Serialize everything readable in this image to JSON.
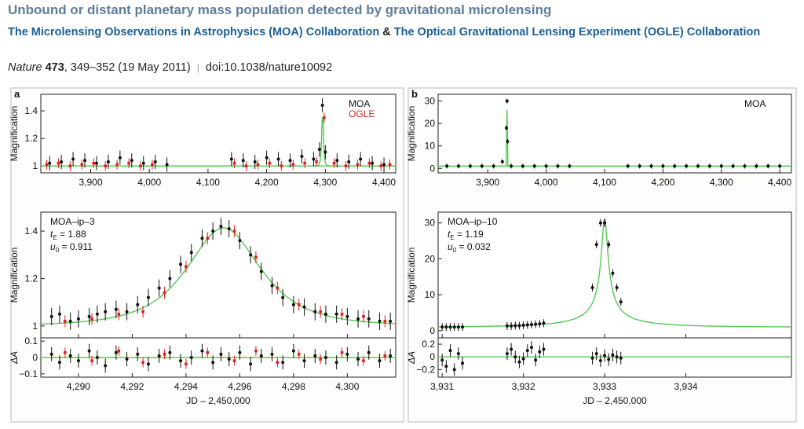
{
  "article": {
    "title": "Unbound or distant planetary mass population detected by gravitational microlensing",
    "author1": "The Microlensing Observations in Astrophysics (MOA) Collaboration",
    "amp": " & ",
    "author2": "The Optical Gravitational Lensing Experiment (OGLE) Collaboration",
    "journal": "Nature",
    "volume": "473",
    "pages": ", 349–352 (19 May 2011)",
    "separator": "|",
    "doi": "doi:10.1038/nature10092"
  },
  "colors": {
    "green": "#55c855",
    "red": "#e02020",
    "black": "#111111",
    "link": "#1a5f95",
    "title": "#5e7d9a"
  },
  "chart_data": [
    {
      "id": "a-top",
      "panel_letter": "a",
      "type": "scatter",
      "ylabel": "Magnification",
      "xlim": [
        3815,
        4420
      ],
      "ylim": [
        0.95,
        1.52
      ],
      "xticks": [
        3900,
        4000,
        4100,
        4200,
        4300,
        4400
      ],
      "xtick_labels": [
        "3,900",
        "4,000",
        "4,100",
        "4,200",
        "4,300",
        "4,400"
      ],
      "yticks": [
        1,
        1.2,
        1.4
      ],
      "ytick_labels": [
        "1",
        "1.2",
        "1.4"
      ],
      "legend": [
        "MOA",
        "OGLE"
      ],
      "legend_placement": "top-right",
      "series": [
        {
          "name": "MOA",
          "role": "data",
          "style": "black-errorbar",
          "x": [
            3830,
            3850,
            3870,
            3890,
            3910,
            3930,
            3950,
            3970,
            3990,
            4010,
            4030,
            4140,
            4160,
            4180,
            4200,
            4220,
            4240,
            4260,
            4280,
            4290,
            4295,
            4300,
            4320,
            4340,
            4360,
            4380,
            4400
          ],
          "y": [
            1.02,
            1.03,
            1.05,
            1.04,
            1.02,
            1.03,
            1.06,
            1.04,
            1.02,
            1.03,
            1.01,
            1.05,
            1.04,
            1.03,
            1.06,
            1.05,
            1.04,
            1.07,
            1.05,
            1.12,
            1.44,
            1.1,
            1.04,
            1.03,
            1.05,
            1.02,
            1.01
          ]
        },
        {
          "name": "OGLE",
          "role": "data",
          "style": "red-points",
          "x": [
            3825,
            3845,
            3865,
            3885,
            3905,
            3925,
            3945,
            3965,
            3985,
            4005,
            4145,
            4165,
            4185,
            4205,
            4225,
            4245,
            4265,
            4285,
            4298,
            4315,
            4335,
            4355,
            4375,
            4395,
            4410
          ],
          "y": [
            1.01,
            1.02,
            1.0,
            1.01,
            1.02,
            1.0,
            1.01,
            1.02,
            1.0,
            1.01,
            1.02,
            1.0,
            1.01,
            1.02,
            1.0,
            1.01,
            1.02,
            1.03,
            1.35,
            1.02,
            1.0,
            1.01,
            1.02,
            1.0,
            1.01
          ]
        },
        {
          "name": "model",
          "role": "model",
          "peak": {
            "t0": 4295.3,
            "tE": 1.88,
            "u0": 0.911
          }
        }
      ]
    },
    {
      "id": "b-top",
      "panel_letter": "b",
      "type": "scatter",
      "ylabel": "Magnification",
      "xlim": [
        3815,
        4420
      ],
      "ylim": [
        -2,
        33
      ],
      "xticks": [
        3900,
        4000,
        4100,
        4200,
        4300,
        4400
      ],
      "xtick_labels": [
        "3,900",
        "4,000",
        "4,100",
        "4,200",
        "4,300",
        "4,400"
      ],
      "yticks": [
        0,
        10,
        20,
        30
      ],
      "ytick_labels": [
        "0",
        "10",
        "20",
        "30"
      ],
      "legend": [
        "MOA"
      ],
      "legend_placement": "top-right",
      "series": [
        {
          "name": "MOA",
          "role": "data",
          "style": "black-errorbar",
          "x": [
            3830,
            3850,
            3870,
            3890,
            3910,
            3925,
            3932,
            3933,
            3934,
            3940,
            3960,
            3980,
            4000,
            4020,
            4040,
            4140,
            4160,
            4180,
            4200,
            4220,
            4240,
            4260,
            4280,
            4300,
            4320,
            4340,
            4360,
            4380,
            4400
          ],
          "y": [
            1,
            1,
            1,
            1,
            1,
            3,
            18,
            30,
            12,
            1,
            1,
            1,
            1,
            1,
            1,
            1,
            1,
            1,
            1,
            1,
            1,
            1,
            1,
            1,
            1,
            1,
            1,
            1,
            1
          ]
        },
        {
          "name": "model",
          "role": "model",
          "peak": {
            "t0": 3933.0,
            "tE": 1.19,
            "u0": 0.032
          }
        }
      ]
    },
    {
      "id": "a-bottom",
      "type": "scatter",
      "ylabel": "Magnification",
      "xlabel": "JD – 2,450,000",
      "xlim": [
        4288.6,
        4301.8
      ],
      "ylim": [
        0.95,
        1.48
      ],
      "xticks": [
        4290,
        4292,
        4294,
        4296,
        4298,
        4300
      ],
      "xtick_labels": [
        "4,290",
        "4,292",
        "4,294",
        "4,296",
        "4,298",
        "4,300"
      ],
      "yticks": [
        1,
        1.2,
        1.4
      ],
      "ytick_labels": [
        "1",
        "1.2",
        "1.4"
      ],
      "residual_ylabel": "ΔA",
      "residual_ylim": [
        -0.12,
        0.12
      ],
      "residual_yticks": [
        -0.1,
        0,
        0.1
      ],
      "residual_ytick_labels": [
        "−0.1",
        "0",
        "0.1"
      ],
      "annotation": {
        "name": "MOA–ip–3",
        "tE_label": "t",
        "tE_sub": "E",
        "tE_val": " = 1.88",
        "u0_label": "u",
        "u0_sub": "0",
        "u0_val": " = 0.911"
      },
      "model": {
        "t0": 4295.4,
        "tE": 1.88,
        "u0": 0.911
      },
      "series": [
        {
          "name": "MOA",
          "role": "data",
          "style": "black-errorbar",
          "x": [
            4289.0,
            4289.3,
            4289.7,
            4290.0,
            4290.4,
            4290.7,
            4291.0,
            4291.4,
            4291.8,
            4292.2,
            4292.6,
            4293.0,
            4293.4,
            4293.8,
            4294.2,
            4294.6,
            4295.0,
            4295.3,
            4295.6,
            4296.0,
            4296.4,
            4296.8,
            4297.2,
            4297.6,
            4298.0,
            4298.4,
            4298.8,
            4299.2,
            4299.6,
            4300.0,
            4300.4,
            4300.8,
            4301.2,
            4301.6
          ],
          "y": [
            1.04,
            1.05,
            1.02,
            1.03,
            1.04,
            1.05,
            1.06,
            1.07,
            1.06,
            1.09,
            1.12,
            1.16,
            1.2,
            1.26,
            1.31,
            1.37,
            1.4,
            1.42,
            1.41,
            1.36,
            1.3,
            1.23,
            1.17,
            1.12,
            1.09,
            1.08,
            1.06,
            1.05,
            1.05,
            1.04,
            1.03,
            1.03,
            1.02,
            1.02
          ],
          "residuals": [
            0.02,
            -0.03,
            0.01,
            -0.02,
            0.04,
            0.0,
            -0.05,
            0.03,
            -0.01,
            0.02,
            -0.04,
            0.01,
            0.03,
            -0.02,
            0.0,
            0.04,
            -0.03,
            0.02,
            -0.01,
            0.03,
            -0.04,
            0.01,
            0.02,
            -0.03,
            0.04,
            -0.02,
            0.01,
            0.0,
            -0.03,
            0.02,
            -0.01,
            0.03,
            -0.02,
            0.01
          ]
        },
        {
          "name": "OGLE",
          "role": "data",
          "style": "red-points",
          "x": [
            4289.5,
            4290.5,
            4291.5,
            4292.4,
            4293.2,
            4294.0,
            4294.8,
            4295.8,
            4296.6,
            4297.4,
            4298.2,
            4299.0,
            4299.8,
            4300.6,
            4301.4
          ],
          "y": [
            1.02,
            1.03,
            1.05,
            1.06,
            1.14,
            1.25,
            1.37,
            1.4,
            1.29,
            1.16,
            1.09,
            1.06,
            1.05,
            1.04,
            1.02
          ],
          "residuals": [
            0.03,
            -0.02,
            0.04,
            -0.03,
            0.02,
            -0.04,
            0.03,
            -0.02,
            0.04,
            -0.03,
            0.02,
            -0.01,
            0.03,
            -0.02,
            0.01
          ]
        }
      ]
    },
    {
      "id": "b-bottom",
      "type": "scatter",
      "ylabel": "Magnification",
      "xlabel": "JD – 2,450,000",
      "xlim": [
        3930.95,
        3935.3
      ],
      "ylim": [
        -2,
        33
      ],
      "xticks": [
        3931,
        3932,
        3933,
        3934
      ],
      "xtick_labels": [
        "3,931",
        "3,932",
        "3,933",
        "3,934"
      ],
      "yticks": [
        0,
        10,
        20,
        30
      ],
      "ytick_labels": [
        "0",
        "10",
        "20",
        "30"
      ],
      "residual_ylabel": "ΔA",
      "residual_ylim": [
        -0.32,
        0.3
      ],
      "residual_yticks": [
        -0.2,
        0,
        0.2
      ],
      "residual_ytick_labels": [
        "−0.2",
        "0",
        "0.2"
      ],
      "annotation": {
        "name": "MOA–ip–10",
        "tE_label": "t",
        "tE_sub": "E",
        "tE_val": " = 1.19",
        "u0_label": "u",
        "u0_sub": "0",
        "u0_val": " = 0.032"
      },
      "model": {
        "t0": 3933.0,
        "tE": 1.19,
        "u0": 0.032
      },
      "series": [
        {
          "name": "MOA",
          "role": "data",
          "style": "black-errorbar",
          "x": [
            3931.0,
            3931.05,
            3931.1,
            3931.15,
            3931.2,
            3931.25,
            3931.8,
            3931.85,
            3931.9,
            3931.95,
            3932.0,
            3932.05,
            3932.1,
            3932.15,
            3932.2,
            3932.25,
            3932.85,
            3932.9,
            3932.95,
            3933.0,
            3933.05,
            3933.1,
            3933.15,
            3933.2
          ],
          "y": [
            1,
            1,
            1,
            1,
            1,
            1,
            1.3,
            1.3,
            1.4,
            1.4,
            1.5,
            1.6,
            1.7,
            1.8,
            1.9,
            2.1,
            12,
            24,
            30,
            30,
            24,
            16,
            12,
            8
          ],
          "residuals": [
            -0.05,
            -0.15,
            0.1,
            -0.2,
            0.05,
            -0.1,
            0.05,
            0.12,
            0.0,
            -0.08,
            -0.03,
            0.1,
            0.15,
            -0.05,
            0.08,
            0.12,
            -0.02,
            0.05,
            -0.06,
            0.02,
            -0.04,
            0.03,
            0.0,
            -0.02
          ]
        }
      ]
    }
  ]
}
